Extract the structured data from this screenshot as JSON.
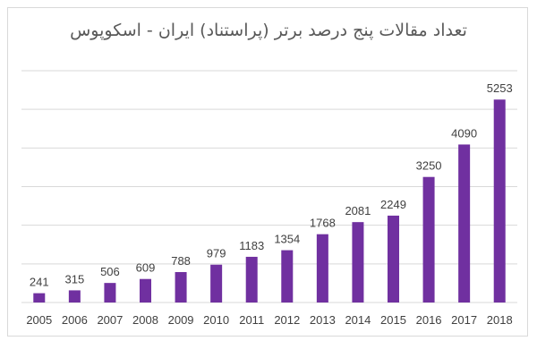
{
  "chart_data": {
    "type": "bar",
    "title": "تعداد مقالات پنج درصد برتر (پراستناد) ایران - اسکوپوس",
    "xlabel": "",
    "ylabel": "",
    "categories": [
      "2005",
      "2006",
      "2007",
      "2008",
      "2009",
      "2010",
      "2011",
      "2012",
      "2013",
      "2014",
      "2015",
      "2016",
      "2017",
      "2018"
    ],
    "values": [
      241,
      315,
      506,
      609,
      788,
      979,
      1183,
      1354,
      1768,
      2081,
      2249,
      3250,
      4090,
      5253
    ],
    "ylim": [
      0,
      6000
    ],
    "grid": true,
    "legend": "none",
    "colors": {
      "bar": "#7030a0",
      "grid": "#d9d9d9",
      "text": "#404040",
      "title": "#595959"
    }
  }
}
